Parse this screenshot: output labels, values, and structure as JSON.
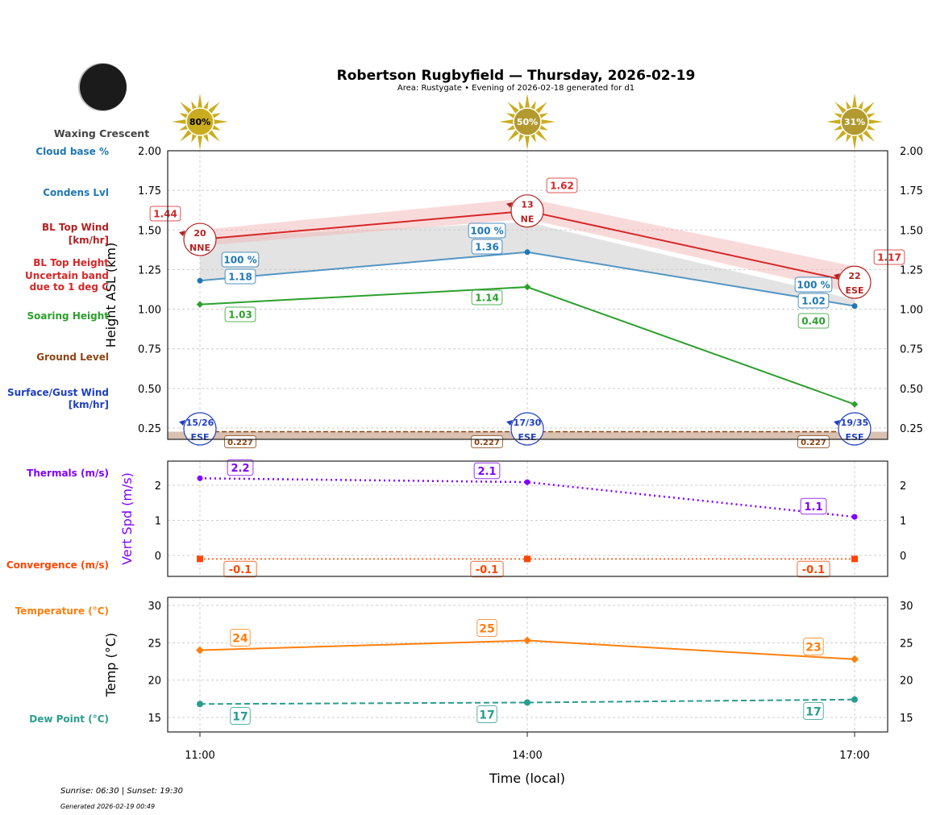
{
  "title": "Robertson Rugbyfield — Thursday, 2026-02-19",
  "subtitle": "Area: Rustygate • Evening of 2026-02-18 generated for d1",
  "moon_phase": "Waxing Crescent",
  "footer": {
    "sun": "Sunrise: 06:30 | Sunset: 19:30",
    "generated": "Generated 2026-02-19 00:49"
  },
  "row_labels": {
    "cloud_base": "Cloud base %",
    "condens": "Condens Lvl",
    "bl_wind": [
      "BL Top Wind",
      "[km/hr]"
    ],
    "bl_height": [
      "BL Top Height",
      "Uncertain band",
      "due to 1 deg C"
    ],
    "soaring": "Soaring Height",
    "ground": "Ground Level",
    "surface_wind": [
      "Surface/Gust Wind",
      "[km/hr]"
    ],
    "thermals": "Thermals (m/s)",
    "convergence": "Convergence (m/s)",
    "temperature": "Temperature (°C)",
    "dew": "Dew Point (°C)"
  },
  "colors": {
    "bl_top": "#d62728",
    "condens": "#1f77b4",
    "soaring": "#2ca02c",
    "ground": "#8b4513",
    "surface_wind": "#1f3fbf",
    "thermals": "#8000ff",
    "convergence": "#ff4500",
    "temperature": "#ff7f0e",
    "dew": "#2a9d8f",
    "sun": "#c9ad1e"
  },
  "chart_data": [
    {
      "type": "line",
      "x": [
        "11:00",
        "14:00",
        "17:00"
      ],
      "xlabel": "Time (local)",
      "ylabel": "Height ASL (km)",
      "ylim": [
        0.18,
        2.0
      ],
      "yticks": [
        "0.25",
        "0.50",
        "0.75",
        "1.00",
        "1.25",
        "1.50",
        "1.75",
        "2.00"
      ],
      "grid": true,
      "cloud_cover_pct": [
        "80%",
        "50%",
        "31%"
      ],
      "bl_top_band_upper": [
        1.5,
        1.7,
        1.27
      ],
      "bl_top_band_lower": [
        1.4,
        1.57,
        1.1
      ],
      "series": [
        {
          "key": "bl_top",
          "values": [
            1.44,
            1.62,
            1.17
          ],
          "labels": [
            "1.44",
            "1.62",
            "1.17"
          ]
        },
        {
          "key": "condens",
          "values": [
            1.18,
            1.36,
            1.02
          ],
          "labels": [
            "1.18",
            "1.36",
            "1.02"
          ],
          "cloud_base_labels": [
            "100 %",
            "100 %",
            "100 %"
          ]
        },
        {
          "key": "soaring",
          "values": [
            1.03,
            1.14,
            0.4
          ],
          "labels": [
            "1.03",
            "1.14",
            "0.40"
          ]
        },
        {
          "key": "ground",
          "values": [
            0.227,
            0.227,
            0.227
          ],
          "labels": [
            "0.227",
            "0.227",
            "0.227"
          ]
        }
      ],
      "bl_wind": [
        {
          "speed": "20",
          "dir": "NNE"
        },
        {
          "speed": "13",
          "dir": "NE"
        },
        {
          "speed": "22",
          "dir": "ESE"
        }
      ],
      "surface_wind": [
        {
          "speed": "15/26",
          "dir": "ESE"
        },
        {
          "speed": "17/30",
          "dir": "ESE"
        },
        {
          "speed": "19/35",
          "dir": "ESE"
        }
      ]
    },
    {
      "type": "line",
      "ylabel": "Vert Spd (m/s)",
      "ylim": [
        -0.6,
        2.69
      ],
      "yticks": [
        "0",
        "1",
        "2"
      ],
      "series": [
        {
          "key": "thermals",
          "values": [
            2.2,
            2.09,
            1.1
          ],
          "labels": [
            "2.2",
            "2.1",
            "1.1"
          ]
        },
        {
          "key": "convergence",
          "values": [
            -0.1,
            -0.1,
            -0.1
          ],
          "labels": [
            "-0.1",
            "-0.1",
            "-0.1"
          ]
        }
      ]
    },
    {
      "type": "line",
      "ylabel": "Temp (°C)",
      "ylim": [
        13.05,
        31.1
      ],
      "yticks": [
        "15",
        "20",
        "25",
        "30"
      ],
      "series": [
        {
          "key": "temperature",
          "values": [
            24.0,
            25.3,
            22.8
          ],
          "labels": [
            "24",
            "25",
            "23"
          ]
        },
        {
          "key": "dew",
          "values": [
            16.8,
            17.0,
            17.4
          ],
          "labels": [
            "17",
            "17",
            "17"
          ]
        }
      ]
    }
  ]
}
